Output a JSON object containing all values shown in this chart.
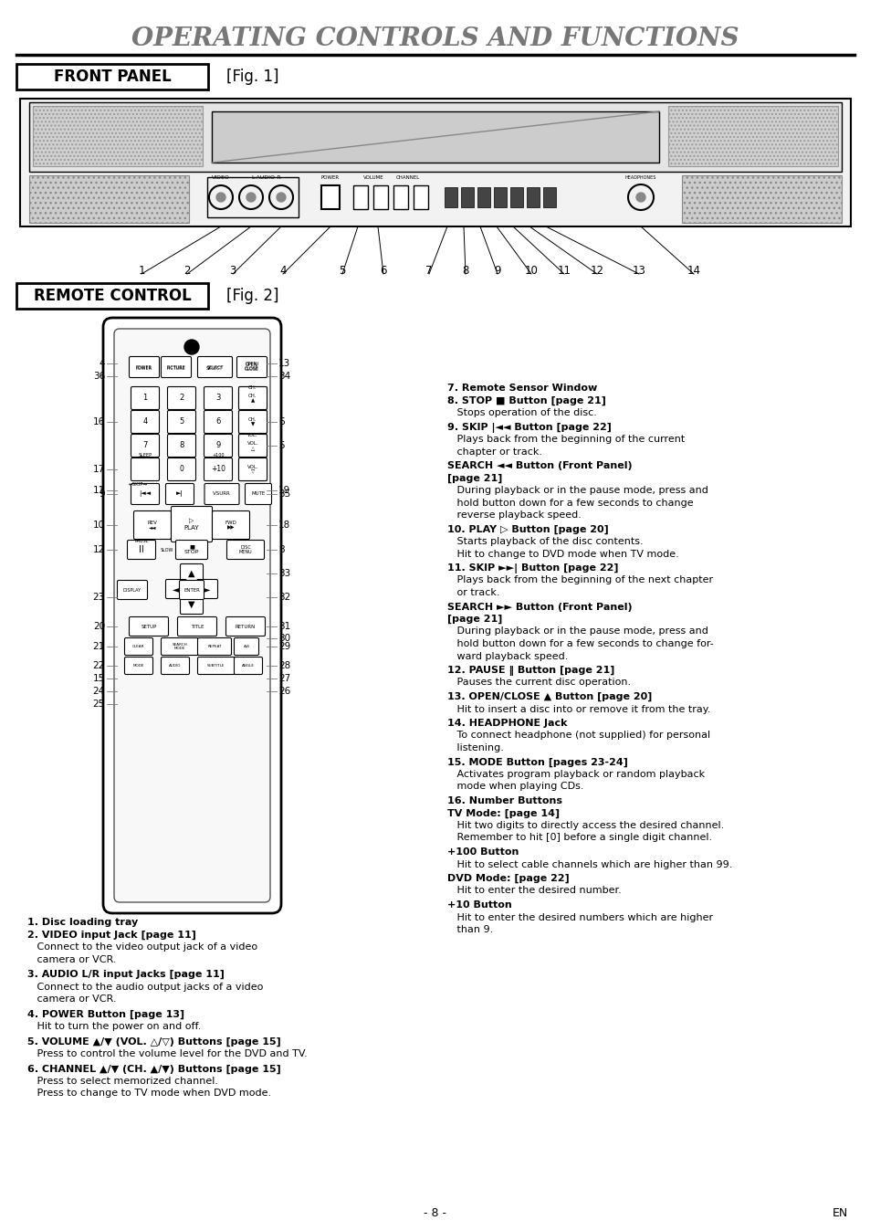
{
  "title": "OPERATING CONTROLS AND FUNCTIONS",
  "title_color": "#777777",
  "title_fontsize": 20,
  "bg_color": "#ffffff",
  "front_panel_label": "FRONT PANEL",
  "fig1_label": "[Fig. 1]",
  "remote_control_label": "REMOTE CONTROL",
  "fig2_label": "[Fig. 2]",
  "page_bottom_center": "- 8 -",
  "page_bottom_right": "EN"
}
